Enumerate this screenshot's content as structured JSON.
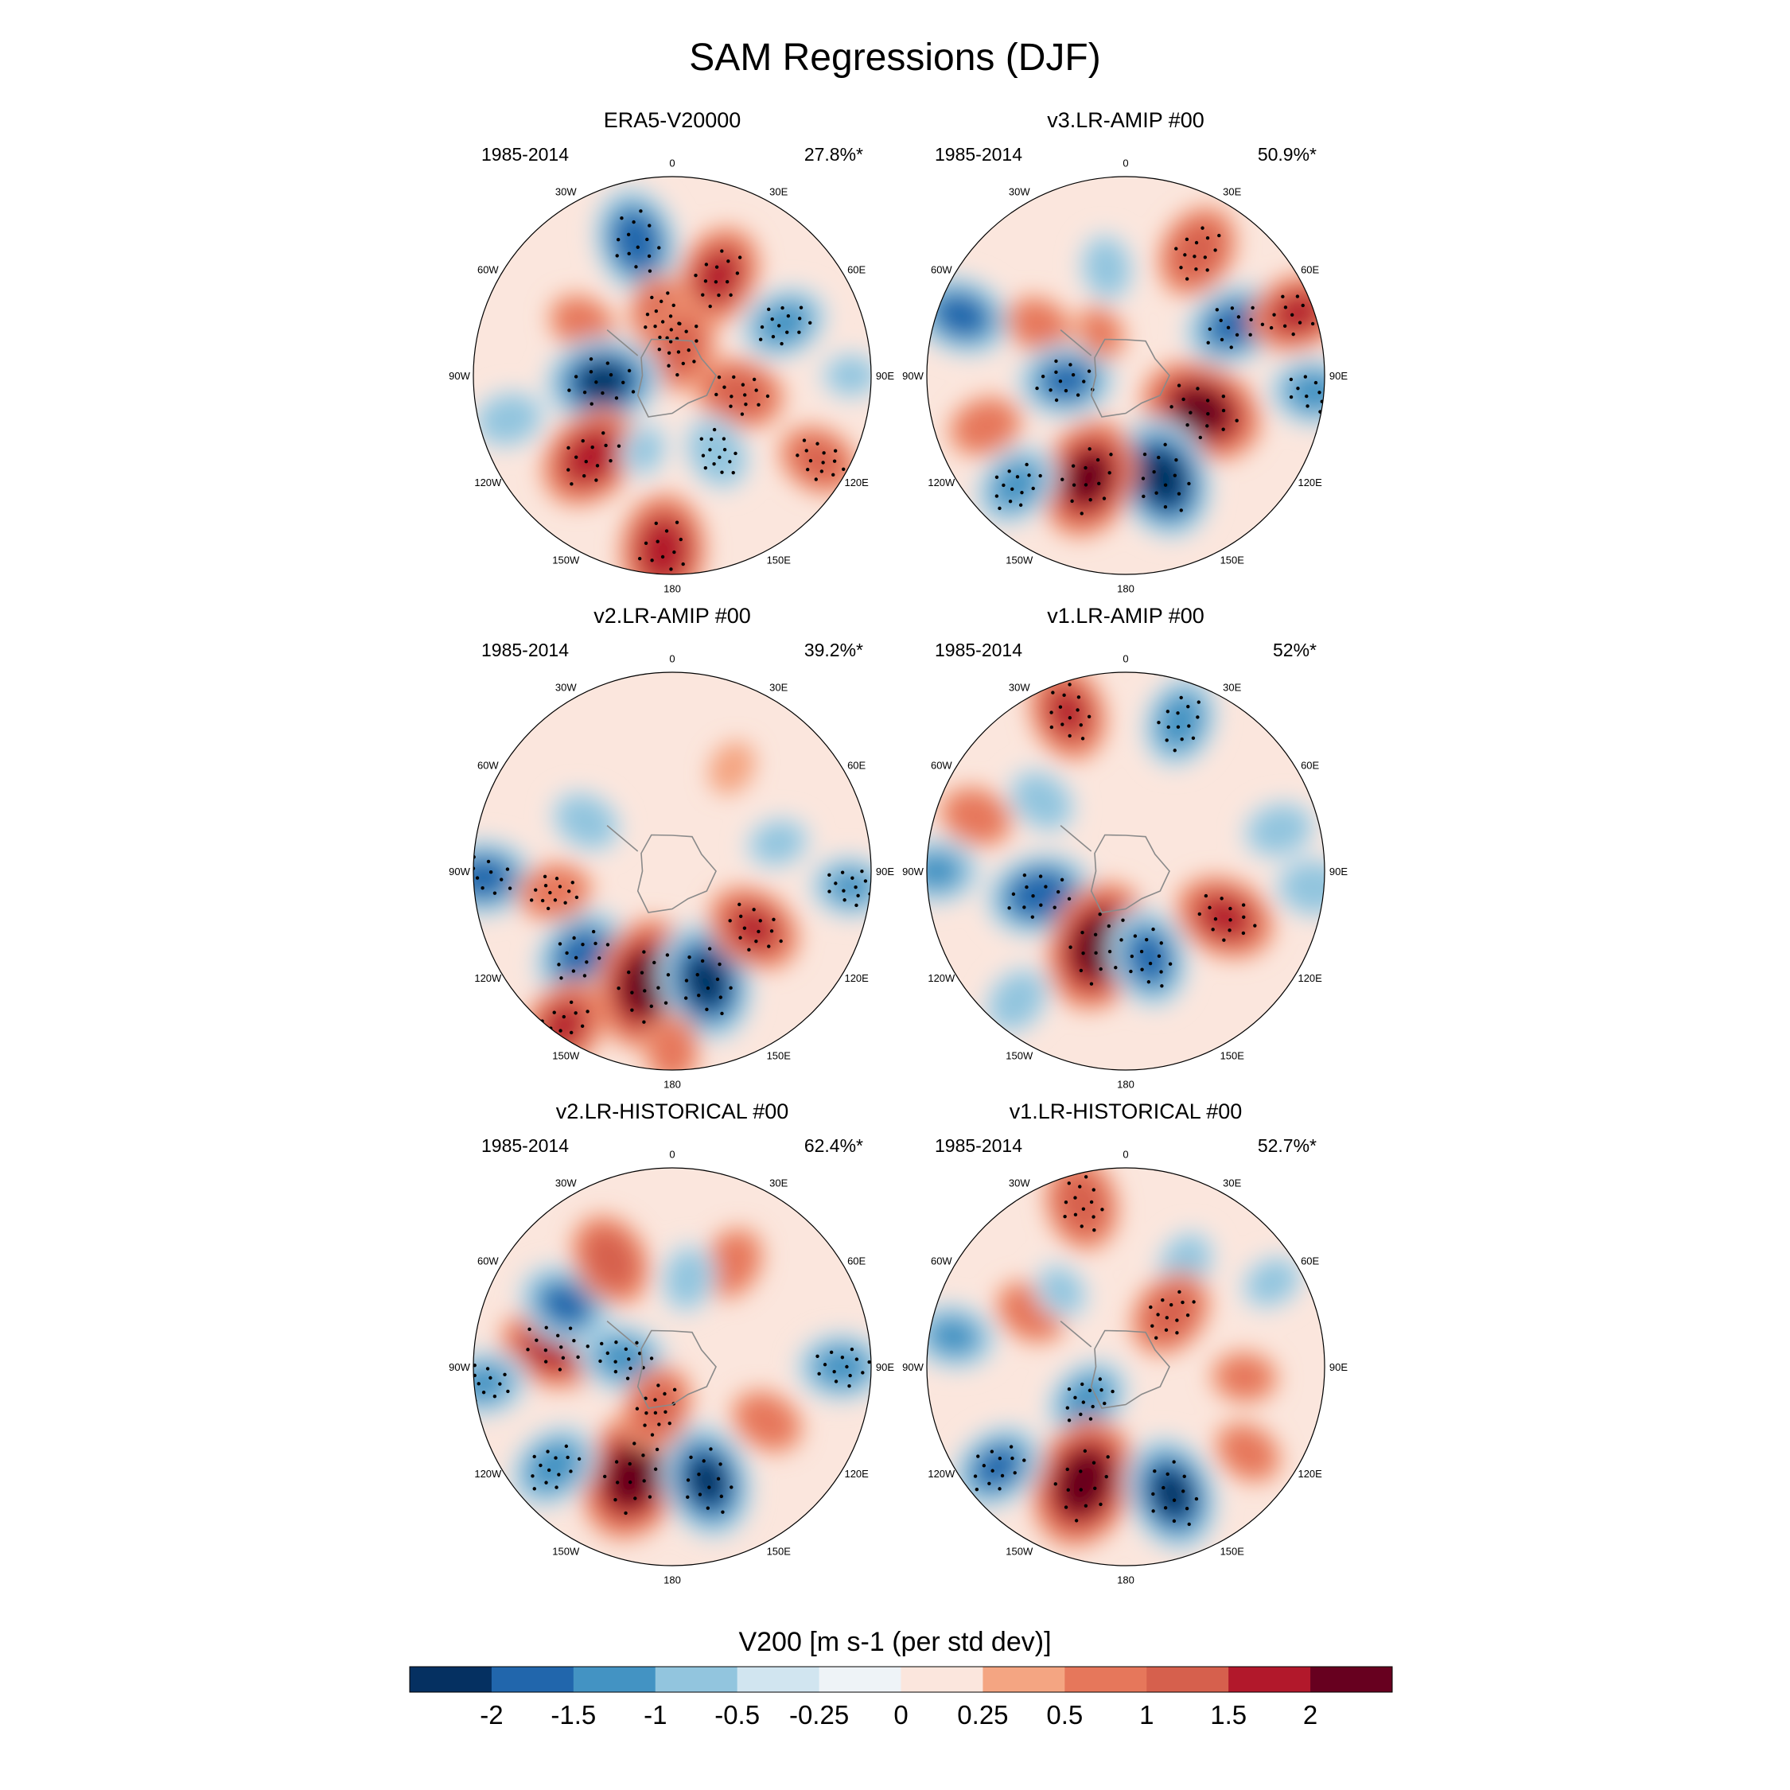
{
  "figure": {
    "title": "SAM Regressions (DJF)"
  },
  "chart_data": {
    "type": "heatmap",
    "projection": "south-polar-stereographic",
    "variable": "V200",
    "colorbar": {
      "title": "V200 [m s-1 (per std dev)]",
      "levels": [
        "-2",
        "-1.5",
        "-1",
        "-0.5",
        "-0.25",
        "0",
        "0.25",
        "0.5",
        "1",
        "1.5",
        "2"
      ],
      "colors": [
        "#053061",
        "#2166ac",
        "#4393c3",
        "#92c5de",
        "#d1e5f0",
        "#eef3f7",
        "#fbe6dd",
        "#f4a582",
        "#e6775b",
        "#d6604d",
        "#b2182b",
        "#67001f"
      ]
    },
    "longitude_labels": [
      "0",
      "30E",
      "60E",
      "90E",
      "120E",
      "150E",
      "180",
      "150W",
      "120W",
      "90W",
      "60W",
      "30W"
    ],
    "panels": [
      {
        "title": "ERA5-V20000",
        "period": "1985-2014",
        "variance": "27.8%*",
        "anomalies": [
          {
            "lon": 345,
            "r": 0.7,
            "v": -1.8,
            "sig": true
          },
          {
            "lon": 25,
            "r": 0.55,
            "v": 1.6,
            "sig": true
          },
          {
            "lon": 65,
            "r": 0.62,
            "v": -1.3,
            "sig": true
          },
          {
            "lon": 300,
            "r": 0.52,
            "v": 0.8,
            "sig": false
          },
          {
            "lon": 350,
            "r": 0.3,
            "v": 1.1,
            "sig": true
          },
          {
            "lon": 15,
            "r": 0.15,
            "v": 1.3,
            "sig": true
          },
          {
            "lon": 265,
            "r": 0.35,
            "v": -2.0,
            "sig": true
          },
          {
            "lon": 105,
            "r": 0.35,
            "v": 1.3,
            "sig": true
          },
          {
            "lon": 225,
            "r": 0.58,
            "v": 1.8,
            "sig": true
          },
          {
            "lon": 150,
            "r": 0.45,
            "v": -1.0,
            "sig": true
          },
          {
            "lon": 183,
            "r": 0.88,
            "v": 1.9,
            "sig": true
          },
          {
            "lon": 120,
            "r": 0.85,
            "v": 1.1,
            "sig": true
          },
          {
            "lon": 90,
            "r": 0.9,
            "v": -0.6,
            "sig": false
          },
          {
            "lon": 255,
            "r": 0.85,
            "v": -0.9,
            "sig": false
          },
          {
            "lon": 200,
            "r": 0.4,
            "v": -0.5,
            "sig": false
          }
        ]
      },
      {
        "title": "v3.LR-AMIP  #00",
        "period": "1985-2014",
        "variance": "50.9%*",
        "anomalies": [
          {
            "lon": 30,
            "r": 0.72,
            "v": 1.4,
            "sig": true
          },
          {
            "lon": 65,
            "r": 0.6,
            "v": -1.6,
            "sig": true
          },
          {
            "lon": 70,
            "r": 0.92,
            "v": 1.5,
            "sig": true
          },
          {
            "lon": 350,
            "r": 0.55,
            "v": -0.8,
            "sig": false
          },
          {
            "lon": 290,
            "r": 0.88,
            "v": -1.6,
            "sig": false
          },
          {
            "lon": 300,
            "r": 0.5,
            "v": 0.8,
            "sig": false
          },
          {
            "lon": 265,
            "r": 0.3,
            "v": -1.5,
            "sig": true
          },
          {
            "lon": 115,
            "r": 0.42,
            "v": 2.2,
            "sig": true
          },
          {
            "lon": 160,
            "r": 0.55,
            "v": -2.2,
            "sig": true
          },
          {
            "lon": 200,
            "r": 0.55,
            "v": 2.1,
            "sig": true
          },
          {
            "lon": 225,
            "r": 0.78,
            "v": -1.3,
            "sig": true
          },
          {
            "lon": 250,
            "r": 0.75,
            "v": 0.9,
            "sig": false
          },
          {
            "lon": 95,
            "r": 0.95,
            "v": -1.3,
            "sig": true
          },
          {
            "lon": 330,
            "r": 0.25,
            "v": 0.5,
            "sig": false
          }
        ]
      },
      {
        "title": "v2.LR-AMIP  #00",
        "period": "1985-2014",
        "variance": "39.2%*",
        "anomalies": [
          {
            "lon": 228,
            "r": 0.62,
            "v": -1.6,
            "sig": true
          },
          {
            "lon": 193,
            "r": 0.58,
            "v": 2.4,
            "sig": true
          },
          {
            "lon": 163,
            "r": 0.58,
            "v": -2.1,
            "sig": true
          },
          {
            "lon": 125,
            "r": 0.5,
            "v": 1.5,
            "sig": true
          },
          {
            "lon": 268,
            "r": 0.95,
            "v": -1.6,
            "sig": true
          },
          {
            "lon": 95,
            "r": 0.9,
            "v": -1.1,
            "sig": true
          },
          {
            "lon": 215,
            "r": 0.95,
            "v": 1.5,
            "sig": true
          },
          {
            "lon": 260,
            "r": 0.6,
            "v": 0.9,
            "sig": true
          },
          {
            "lon": 300,
            "r": 0.5,
            "v": -0.9,
            "sig": false
          },
          {
            "lon": 75,
            "r": 0.55,
            "v": -0.7,
            "sig": false
          },
          {
            "lon": 180,
            "r": 0.9,
            "v": 0.8,
            "sig": false
          },
          {
            "lon": 30,
            "r": 0.6,
            "v": 0.4,
            "sig": false
          }
        ]
      },
      {
        "title": "v1.LR-AMIP  #00",
        "period": "1985-2014",
        "variance": "52%*",
        "anomalies": [
          {
            "lon": 340,
            "r": 0.85,
            "v": 1.5,
            "sig": true
          },
          {
            "lon": 20,
            "r": 0.8,
            "v": -1.4,
            "sig": true
          },
          {
            "lon": 310,
            "r": 0.55,
            "v": -0.9,
            "sig": false
          },
          {
            "lon": 255,
            "r": 0.45,
            "v": -1.8,
            "sig": true
          },
          {
            "lon": 200,
            "r": 0.4,
            "v": 2.4,
            "sig": true
          },
          {
            "lon": 165,
            "r": 0.45,
            "v": -1.6,
            "sig": true
          },
          {
            "lon": 115,
            "r": 0.55,
            "v": 1.6,
            "sig": true
          },
          {
            "lon": 290,
            "r": 0.8,
            "v": 0.9,
            "sig": false
          },
          {
            "lon": 75,
            "r": 0.8,
            "v": -0.9,
            "sig": false
          },
          {
            "lon": 95,
            "r": 0.95,
            "v": -1.0,
            "sig": false
          },
          {
            "lon": 270,
            "r": 0.95,
            "v": -1.2,
            "sig": false
          },
          {
            "lon": 220,
            "r": 0.85,
            "v": -0.9,
            "sig": false
          }
        ]
      },
      {
        "title": "v2.LR-HISTORICAL  #00",
        "period": "1985-2014",
        "variance": "62.4%*",
        "anomalies": [
          {
            "lon": 200,
            "r": 0.58,
            "v": 2.4,
            "sig": true
          },
          {
            "lon": 163,
            "r": 0.6,
            "v": -2.0,
            "sig": true
          },
          {
            "lon": 230,
            "r": 0.78,
            "v": -1.4,
            "sig": true
          },
          {
            "lon": 280,
            "r": 0.6,
            "v": 1.8,
            "sig": true
          },
          {
            "lon": 300,
            "r": 0.62,
            "v": -1.5,
            "sig": false
          },
          {
            "lon": 330,
            "r": 0.62,
            "v": 1.4,
            "sig": false
          },
          {
            "lon": 280,
            "r": 0.25,
            "v": -1.3,
            "sig": true
          },
          {
            "lon": 200,
            "r": 0.22,
            "v": 1.2,
            "sig": true
          },
          {
            "lon": 90,
            "r": 0.85,
            "v": -1.3,
            "sig": true
          },
          {
            "lon": 120,
            "r": 0.55,
            "v": 0.9,
            "sig": false
          },
          {
            "lon": 30,
            "r": 0.6,
            "v": 0.9,
            "sig": false
          },
          {
            "lon": 10,
            "r": 0.45,
            "v": -0.8,
            "sig": false
          },
          {
            "lon": 265,
            "r": 0.95,
            "v": -1.2,
            "sig": true
          }
        ]
      },
      {
        "title": "v1.LR-HISTORICAL  #00",
        "period": "1985-2014",
        "variance": "52.7%*",
        "anomalies": [
          {
            "lon": 345,
            "r": 0.85,
            "v": 1.4,
            "sig": true
          },
          {
            "lon": 30,
            "r": 0.6,
            "v": -0.8,
            "sig": false
          },
          {
            "lon": 40,
            "r": 0.35,
            "v": 1.3,
            "sig": true
          },
          {
            "lon": 230,
            "r": 0.25,
            "v": -1.3,
            "sig": true
          },
          {
            "lon": 200,
            "r": 0.62,
            "v": 2.4,
            "sig": true
          },
          {
            "lon": 160,
            "r": 0.68,
            "v": -2.0,
            "sig": true
          },
          {
            "lon": 232,
            "r": 0.82,
            "v": -1.5,
            "sig": true
          },
          {
            "lon": 280,
            "r": 0.88,
            "v": -1.2,
            "sig": false
          },
          {
            "lon": 300,
            "r": 0.55,
            "v": 0.9,
            "sig": false
          },
          {
            "lon": 320,
            "r": 0.5,
            "v": -0.6,
            "sig": false
          },
          {
            "lon": 95,
            "r": 0.6,
            "v": 0.7,
            "sig": false
          },
          {
            "lon": 60,
            "r": 0.85,
            "v": -0.7,
            "sig": false
          },
          {
            "lon": 125,
            "r": 0.75,
            "v": 0.8,
            "sig": false
          }
        ]
      }
    ]
  }
}
